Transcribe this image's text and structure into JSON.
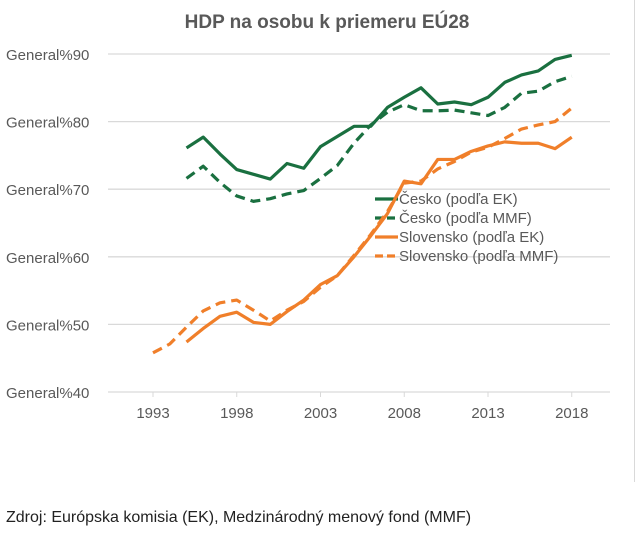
{
  "chart_data": {
    "type": "line",
    "title": "HDP na osobu k priemeru EÚ28",
    "xlabel": "",
    "ylabel": "",
    "ylim": [
      40,
      90
    ],
    "xlim": [
      1991,
      2020
    ],
    "yticks": [
      40,
      50,
      60,
      70,
      80,
      90
    ],
    "ytick_labels": [
      "General%40",
      "General%50",
      "General%60",
      "General%70",
      "General%80",
      "General%90"
    ],
    "xticks": [
      1993,
      1998,
      2003,
      2008,
      2013,
      2018
    ],
    "xtick_labels": [
      "1993",
      "1998",
      "2003",
      "2008",
      "2013",
      "2018"
    ],
    "grid": true,
    "legend_position": "center-right",
    "series": [
      {
        "name": "Česko (podľa EK)",
        "color": "#1a7040",
        "dash": false,
        "start": 1995,
        "values": [
          76.1,
          77.7,
          75.2,
          72.9,
          72.2,
          71.5,
          73.8,
          73.1,
          76.3,
          77.8,
          79.3,
          79.3,
          82.1,
          83.6,
          85.0,
          82.6,
          82.9,
          82.5,
          83.6,
          85.8,
          86.9,
          87.5,
          89.2,
          89.8
        ]
      },
      {
        "name": "Česko (podľa MMF)",
        "color": "#1a7040",
        "dash": true,
        "start": 1995,
        "values": [
          71.6,
          73.4,
          71.0,
          69.0,
          68.2,
          68.6,
          69.3,
          69.8,
          71.6,
          73.5,
          76.8,
          79.5,
          81.4,
          82.5,
          81.6,
          81.6,
          81.7,
          81.3,
          80.9,
          82.1,
          84.2,
          84.5,
          85.9,
          86.7
        ]
      },
      {
        "name": "Slovensko (podľa EK)",
        "color": "#f07f2a",
        "dash": false,
        "start": 1995,
        "values": [
          47.4,
          49.4,
          51.2,
          51.8,
          50.3,
          50.0,
          51.9,
          53.6,
          55.9,
          57.2,
          60.0,
          63.1,
          66.4,
          71.2,
          70.8,
          74.4,
          74.4,
          75.6,
          76.4,
          77.0,
          76.8,
          76.8,
          76.0,
          77.7
        ]
      },
      {
        "name": "Slovensko (podľa MMF)",
        "color": "#f07f2a",
        "dash": true,
        "start": 1993,
        "values": [
          45.8,
          47.1,
          49.6,
          52.0,
          53.2,
          53.6,
          52.1,
          50.5,
          52.1,
          53.4,
          55.5,
          57.2,
          60.2,
          63.3,
          66.7,
          70.9,
          71.2,
          73.0,
          74.1,
          75.5,
          76.2,
          77.5,
          78.9,
          79.5,
          80.0,
          82.0
        ]
      }
    ]
  },
  "source": "Zdroj: Európska komisia (EK), Medzinárodný menový fond (MMF)"
}
